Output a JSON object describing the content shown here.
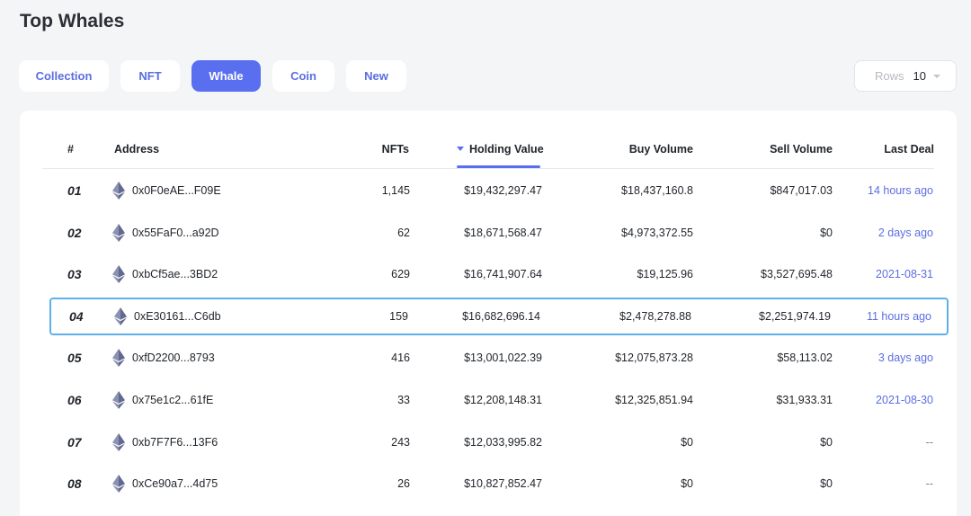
{
  "page": {
    "title": "Top Whales"
  },
  "tabs": [
    {
      "label": "Collection",
      "active": false
    },
    {
      "label": "NFT",
      "active": false
    },
    {
      "label": "Whale",
      "active": true
    },
    {
      "label": "Coin",
      "active": false
    },
    {
      "label": "New",
      "active": false
    }
  ],
  "rows_select": {
    "label": "Rows",
    "value": "10"
  },
  "table": {
    "columns": [
      "#",
      "Address",
      "NFTs",
      "Holding Value",
      "Buy Volume",
      "Sell Volume",
      "Last Deal"
    ],
    "sorted_column": "Holding Value",
    "rows": [
      {
        "rank": "01",
        "address": "0x0F0eAE...F09E",
        "nfts": "1,145",
        "holding": "$19,432,297.47",
        "buy": "$18,437,160.8",
        "sell": "$847,017.03",
        "last": "14 hours ago",
        "last_link": true,
        "selected": false
      },
      {
        "rank": "02",
        "address": "0x55FaF0...a92D",
        "nfts": "62",
        "holding": "$18,671,568.47",
        "buy": "$4,973,372.55",
        "sell": "$0",
        "last": "2 days ago",
        "last_link": true,
        "selected": false
      },
      {
        "rank": "03",
        "address": "0xbCf5ae...3BD2",
        "nfts": "629",
        "holding": "$16,741,907.64",
        "buy": "$19,125.96",
        "sell": "$3,527,695.48",
        "last": "2021-08-31",
        "last_link": true,
        "selected": false
      },
      {
        "rank": "04",
        "address": "0xE30161...C6db",
        "nfts": "159",
        "holding": "$16,682,696.14",
        "buy": "$2,478,278.88",
        "sell": "$2,251,974.19",
        "last": "11 hours ago",
        "last_link": true,
        "selected": true
      },
      {
        "rank": "05",
        "address": "0xfD2200...8793",
        "nfts": "416",
        "holding": "$13,001,022.39",
        "buy": "$12,075,873.28",
        "sell": "$58,113.02",
        "last": "3 days ago",
        "last_link": true,
        "selected": false
      },
      {
        "rank": "06",
        "address": "0x75e1c2...61fE",
        "nfts": "33",
        "holding": "$12,208,148.31",
        "buy": "$12,325,851.94",
        "sell": "$31,933.31",
        "last": "2021-08-30",
        "last_link": true,
        "selected": false
      },
      {
        "rank": "07",
        "address": "0xb7F7F6...13F6",
        "nfts": "243",
        "holding": "$12,033,995.82",
        "buy": "$0",
        "sell": "$0",
        "last": "--",
        "last_link": false,
        "selected": false
      },
      {
        "rank": "08",
        "address": "0xCe90a7...4d75",
        "nfts": "26",
        "holding": "$10,827,852.47",
        "buy": "$0",
        "sell": "$0",
        "last": "--",
        "last_link": false,
        "selected": false
      }
    ]
  },
  "icons": {
    "chain": "ethereum-icon",
    "sort": "caret-down-icon"
  },
  "colors": {
    "accent": "#5a6ff0",
    "link": "#5b6ee1",
    "selected_border": "#5fb0e8",
    "background": "#f4f5f7"
  }
}
